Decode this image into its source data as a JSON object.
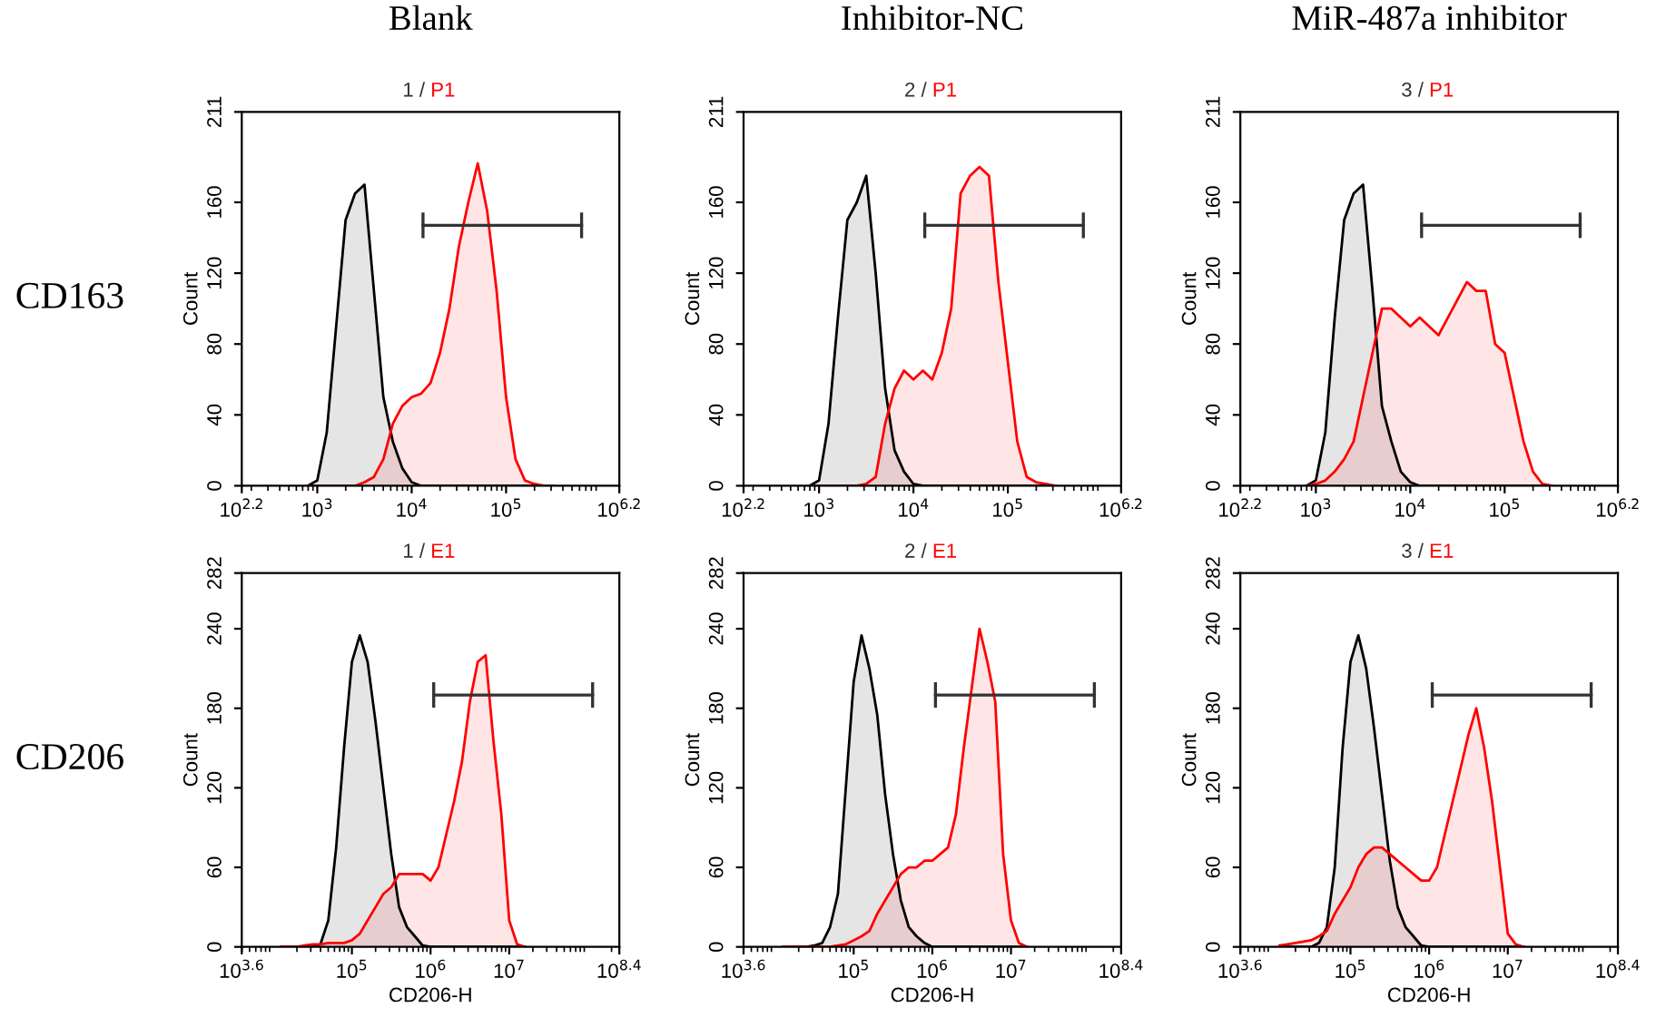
{
  "chart_data": [
    {
      "type": "area",
      "subtitle": "Blank",
      "title": "1 / P1",
      "ylabel": "Count",
      "annotations": [
        "CD163"
      ],
      "log": "x",
      "grid": false,
      "legend": false,
      "x": [
        794,
        1000,
        1259,
        1585,
        1995,
        2512,
        3162,
        3981,
        5012,
        6310,
        7943,
        10000,
        12589,
        15849,
        19953,
        25119,
        31623,
        39811,
        50119,
        63096,
        79433,
        100000,
        125893,
        158489,
        199526,
        251189,
        316228
      ],
      "series": [
        {
          "color": "#000000",
          "values": [
            0,
            3,
            30,
            90,
            150,
            165,
            170,
            110,
            50,
            25,
            10,
            2,
            0,
            0,
            0,
            0,
            0,
            0,
            0,
            0,
            0,
            0,
            0,
            0,
            0,
            0,
            0
          ]
        },
        {
          "color": "#ff0000",
          "values": [
            0,
            0,
            0,
            0,
            0,
            0,
            2,
            5,
            15,
            35,
            45,
            50,
            52,
            58,
            75,
            100,
            135,
            160,
            182,
            155,
            110,
            50,
            15,
            3,
            1,
            0,
            0
          ]
        },
        {
          "type": "line",
          "color": "#333333",
          "x": [
            13183,
            630957
          ],
          "values": [
            147,
            147
          ]
        }
      ],
      "xlim": [
        158.489,
        1584893
      ],
      "xticks": [
        {
          "value": 158.489,
          "label": "10$^{2.2}$"
        },
        {
          "value": 1000,
          "label": "10$^{3}$"
        },
        {
          "value": 10000,
          "label": "10$^{4}$"
        },
        {
          "value": 100000,
          "label": "10$^{5}$"
        },
        {
          "value": 1584893,
          "label": "10$^{6.2}$"
        }
      ],
      "ylim": [
        0,
        211
      ],
      "yticks": [
        0,
        40,
        80,
        120,
        160,
        211
      ]
    },
    {
      "type": "area",
      "subtitle": "Inhibitor-NC",
      "title": "2 / P1",
      "ylabel": "Count",
      "log": "x",
      "grid": false,
      "legend": false,
      "x": [
        794,
        1000,
        1259,
        1585,
        1995,
        2512,
        3162,
        3981,
        5012,
        6310,
        7943,
        10000,
        12589,
        15849,
        19953,
        25119,
        31623,
        39811,
        50119,
        63096,
        79433,
        100000,
        125893,
        158489,
        199526,
        251189,
        316228
      ],
      "series": [
        {
          "color": "#000000",
          "values": [
            0,
            3,
            35,
            95,
            150,
            160,
            175,
            120,
            55,
            20,
            8,
            1,
            0,
            0,
            0,
            0,
            0,
            0,
            0,
            0,
            0,
            0,
            0,
            0,
            0,
            0,
            0
          ]
        },
        {
          "color": "#ff0000",
          "values": [
            0,
            0,
            0,
            0,
            0,
            0,
            1,
            5,
            35,
            55,
            65,
            60,
            65,
            60,
            75,
            100,
            165,
            175,
            180,
            175,
            115,
            70,
            25,
            5,
            2,
            1,
            0
          ]
        },
        {
          "type": "line",
          "color": "#333333",
          "x": [
            13183,
            630957
          ],
          "values": [
            147,
            147
          ]
        }
      ],
      "xlim": [
        158.489,
        1584893
      ],
      "xticks": [
        {
          "value": 158.489,
          "label": "10$^{2.2}$"
        },
        {
          "value": 1000,
          "label": "10$^{3}$"
        },
        {
          "value": 10000,
          "label": "10$^{4}$"
        },
        {
          "value": 100000,
          "label": "10$^{5}$"
        },
        {
          "value": 1584893,
          "label": "10$^{6.2}$"
        }
      ],
      "ylim": [
        0,
        211
      ],
      "yticks": [
        0,
        40,
        80,
        120,
        160,
        211
      ]
    },
    {
      "type": "area",
      "subtitle": "MiR-487a inhibitor",
      "title": "3 / P1",
      "ylabel": "Count",
      "log": "x",
      "grid": false,
      "legend": false,
      "x": [
        794,
        1000,
        1259,
        1585,
        1995,
        2512,
        3162,
        3981,
        5012,
        6310,
        7943,
        10000,
        12589,
        15849,
        19953,
        25119,
        31623,
        39811,
        50119,
        63096,
        79433,
        100000,
        125893,
        158489,
        199526,
        251189,
        316228
      ],
      "series": [
        {
          "color": "#000000",
          "values": [
            0,
            3,
            30,
            95,
            150,
            165,
            170,
            110,
            45,
            25,
            8,
            2,
            0,
            0,
            0,
            0,
            0,
            0,
            0,
            0,
            0,
            0,
            0,
            0,
            0,
            0,
            0
          ]
        },
        {
          "color": "#ff0000",
          "values": [
            0,
            1,
            3,
            8,
            15,
            25,
            50,
            75,
            100,
            100,
            95,
            90,
            95,
            90,
            85,
            95,
            105,
            115,
            110,
            110,
            80,
            75,
            50,
            25,
            8,
            1,
            0
          ]
        },
        {
          "type": "line",
          "color": "#333333",
          "x": [
            13183,
            630957
          ],
          "values": [
            147,
            147
          ]
        }
      ],
      "xlim": [
        158.489,
        1584893
      ],
      "xticks": [
        {
          "value": 158.489,
          "label": "10$^{2.2}$"
        },
        {
          "value": 1000,
          "label": "10$^{3}$"
        },
        {
          "value": 10000,
          "label": "10$^{4}$"
        },
        {
          "value": 100000,
          "label": "10$^{5}$"
        },
        {
          "value": 1584893,
          "label": "10$^{6.2}$"
        }
      ],
      "ylim": [
        0,
        211
      ],
      "yticks": [
        0,
        40,
        80,
        120,
        160,
        211
      ]
    },
    {
      "type": "area",
      "title": "1 / E1",
      "xlabel": "CD206-H",
      "ylabel": "Count",
      "annotations": [
        "CD206"
      ],
      "log": "x",
      "grid": false,
      "legend": false,
      "x": [
        12589,
        15849,
        19953,
        25119,
        31623,
        39811,
        50119,
        63096,
        79433,
        100000,
        125893,
        158489,
        199526,
        251189,
        316228,
        398107,
        501187,
        630957,
        794328,
        1000000,
        1258925,
        1584893,
        1995262,
        2511886,
        3162278,
        3981072,
        5011872,
        6309573,
        7943282,
        10000000,
        12589254,
        15848932
      ],
      "series": [
        {
          "color": "#000000",
          "values": [
            0,
            0,
            0,
            0,
            0,
            2,
            20,
            75,
            150,
            215,
            235,
            215,
            170,
            120,
            70,
            30,
            15,
            8,
            1,
            0,
            0,
            0,
            0,
            0,
            0,
            0,
            0,
            0,
            0,
            0,
            0,
            0
          ]
        },
        {
          "color": "#ff0000",
          "values": [
            0,
            0,
            0,
            1,
            2,
            2,
            3,
            3,
            3,
            5,
            10,
            20,
            30,
            40,
            45,
            55,
            55,
            55,
            55,
            50,
            60,
            85,
            110,
            140,
            185,
            215,
            220,
            155,
            100,
            20,
            2,
            0
          ]
        },
        {
          "type": "line",
          "color": "#333333",
          "x": [
            1096478,
            114815362
          ],
          "values": [
            190,
            190
          ]
        }
      ],
      "xlim": [
        3981.07,
        251188643
      ],
      "xticks": [
        {
          "value": 3981.07,
          "label": "10$^{3.6}$"
        },
        {
          "value": 100000,
          "label": "10$^{5}$"
        },
        {
          "value": 1000000,
          "label": "10$^{6}$"
        },
        {
          "value": 10000000,
          "label": "10$^{7}$"
        },
        {
          "value": 251188643,
          "label": "10$^{8.4}$"
        }
      ],
      "ylim": [
        0,
        282
      ],
      "yticks": [
        0,
        60,
        120,
        180,
        240,
        282
      ]
    },
    {
      "type": "area",
      "title": "2 / E1",
      "xlabel": "CD206-H",
      "ylabel": "Count",
      "log": "x",
      "grid": false,
      "legend": false,
      "x": [
        12589,
        15849,
        19953,
        25119,
        31623,
        39811,
        50119,
        63096,
        79433,
        100000,
        125893,
        158489,
        199526,
        251189,
        316228,
        398107,
        501187,
        630957,
        794328,
        1000000,
        1258925,
        1584893,
        1995262,
        2511886,
        3162278,
        3981072,
        5011872,
        6309573,
        7943282,
        10000000,
        12589254,
        15848932
      ],
      "series": [
        {
          "color": "#000000",
          "values": [
            0,
            0,
            0,
            0,
            1,
            3,
            15,
            40,
            120,
            200,
            235,
            210,
            175,
            115,
            70,
            35,
            15,
            8,
            3,
            0,
            0,
            0,
            0,
            0,
            0,
            0,
            0,
            0,
            0,
            0,
            0,
            0
          ]
        },
        {
          "color": "#ff0000",
          "values": [
            0,
            0,
            0,
            0,
            0,
            0,
            0,
            1,
            2,
            5,
            8,
            12,
            25,
            35,
            45,
            55,
            60,
            60,
            65,
            65,
            70,
            75,
            100,
            150,
            195,
            240,
            215,
            185,
            70,
            20,
            3,
            0
          ]
        },
        {
          "type": "line",
          "color": "#333333",
          "x": [
            1096478,
            114815362
          ],
          "values": [
            190,
            190
          ]
        }
      ],
      "xlim": [
        3981.07,
        251188643
      ],
      "xticks": [
        {
          "value": 3981.07,
          "label": "10$^{3.6}$"
        },
        {
          "value": 100000,
          "label": "10$^{5}$"
        },
        {
          "value": 1000000,
          "label": "10$^{6}$"
        },
        {
          "value": 10000000,
          "label": "10$^{7}$"
        },
        {
          "value": 251188643,
          "label": "10$^{8.4}$"
        }
      ],
      "ylim": [
        0,
        282
      ],
      "yticks": [
        0,
        60,
        120,
        180,
        240,
        282
      ]
    },
    {
      "type": "area",
      "title": "3 / E1",
      "xlabel": "CD206-H",
      "ylabel": "Count",
      "log": "x",
      "grid": false,
      "legend": false,
      "x": [
        12589,
        15849,
        19953,
        25119,
        31623,
        39811,
        50119,
        63096,
        79433,
        100000,
        125893,
        158489,
        199526,
        251189,
        316228,
        398107,
        501187,
        630957,
        794328,
        1000000,
        1258925,
        1584893,
        1995262,
        2511886,
        3162278,
        3981072,
        5011872,
        6309573,
        7943282,
        10000000,
        12589254,
        15848932
      ],
      "series": [
        {
          "color": "#000000",
          "values": [
            0,
            0,
            0,
            0,
            0,
            3,
            15,
            60,
            150,
            215,
            235,
            210,
            165,
            115,
            65,
            30,
            15,
            8,
            1,
            0,
            0,
            0,
            0,
            0,
            0,
            0,
            0,
            0,
            0,
            0,
            0,
            0
          ]
        },
        {
          "color": "#ff0000",
          "values": [
            1,
            2,
            3,
            4,
            5,
            8,
            12,
            25,
            35,
            45,
            60,
            70,
            75,
            75,
            70,
            65,
            60,
            55,
            50,
            50,
            60,
            85,
            110,
            135,
            160,
            180,
            150,
            110,
            60,
            10,
            2,
            0
          ]
        },
        {
          "type": "line",
          "color": "#333333",
          "x": [
            1096478,
            114815362
          ],
          "values": [
            190,
            190
          ]
        }
      ],
      "xlim": [
        3981.07,
        251188643
      ],
      "xticks": [
        {
          "value": 3981.07,
          "label": "10$^{3.6}$"
        },
        {
          "value": 100000,
          "label": "10$^{5}$"
        },
        {
          "value": 1000000,
          "label": "10$^{6}$"
        },
        {
          "value": 10000000,
          "label": "10$^{7}$"
        },
        {
          "value": 251188643,
          "label": "10$^{8.4}$"
        }
      ],
      "ylim": [
        0,
        282
      ],
      "yticks": [
        0,
        60,
        120,
        180,
        240,
        282
      ]
    }
  ]
}
